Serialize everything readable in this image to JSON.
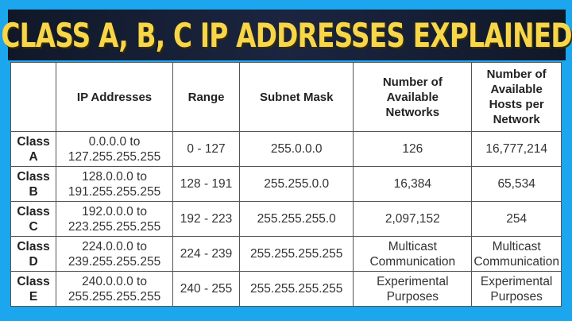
{
  "title": "CLASS A, B, C  IP ADDRESSES EXPLAINED",
  "colors": {
    "frame": "#1ba6ee",
    "banner": "#141c30",
    "title": "#f7d64a"
  },
  "table": {
    "headers": [
      "",
      "IP Addresses",
      "Range",
      "Subnet Mask",
      "Number of Available Networks",
      "Number of Available Hosts per Network"
    ],
    "rows": [
      [
        "Class A",
        "0.0.0.0 to 127.255.255.255",
        "0 - 127",
        "255.0.0.0",
        "126",
        "16,777,214"
      ],
      [
        "Class B",
        "128.0.0.0 to 191.255.255.255",
        "128 - 191",
        "255.255.0.0",
        "16,384",
        "65,534"
      ],
      [
        "Class C",
        "192.0.0.0 to 223.255.255.255",
        "192 - 223",
        "255.255.255.0",
        "2,097,152",
        "254"
      ],
      [
        "Class D",
        "224.0.0.0 to 239.255.255.255",
        "224 - 239",
        "255.255.255.255",
        "Multicast Communication",
        "Multicast Communication"
      ],
      [
        "Class E",
        "240.0.0.0 to 255.255.255.255",
        "240 - 255",
        "255.255.255.255",
        "Experimental Purposes",
        "Experimental Purposes"
      ]
    ]
  }
}
